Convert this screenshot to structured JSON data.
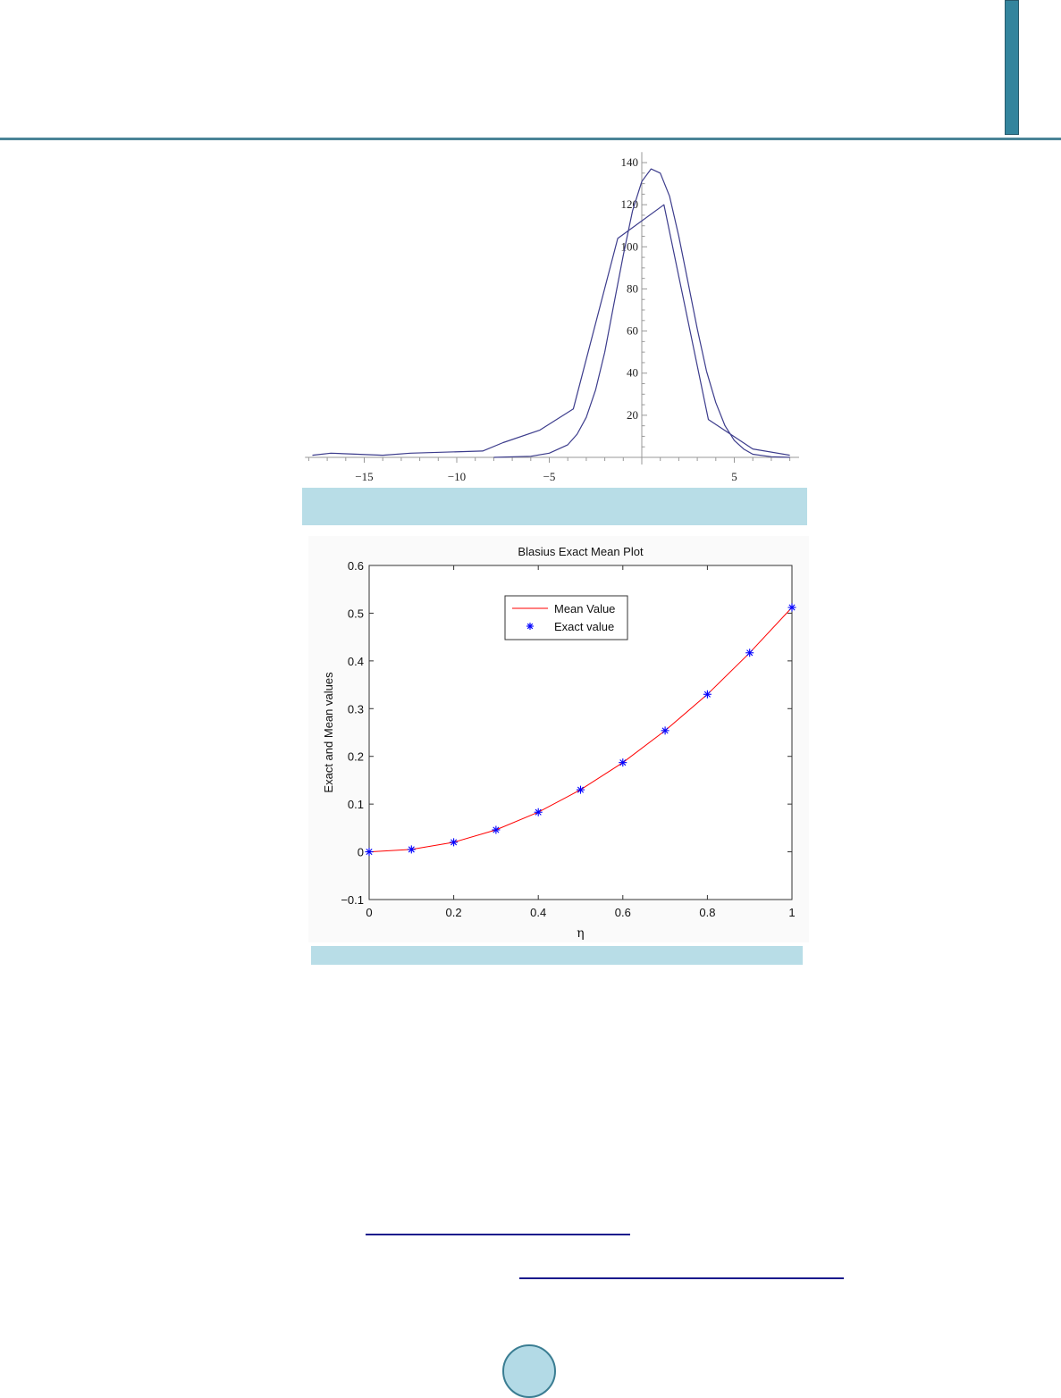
{
  "header": {
    "rule_color": "#4a8497",
    "tab_color": "#33849d"
  },
  "figures": [
    {
      "id": "figure-1",
      "caption": "",
      "caption_bar_color": "#b8dde7"
    },
    {
      "id": "figure-2",
      "caption": "",
      "caption_bar_color": "#b8dde7"
    }
  ],
  "footer": {
    "links": [
      "",
      ""
    ],
    "page_number": ""
  },
  "chart_data": [
    {
      "type": "line",
      "title": "",
      "xlabel": "",
      "ylabel": "",
      "xlim": [
        -18,
        8
      ],
      "ylim": [
        0,
        145
      ],
      "x_ticks": [
        -15,
        -10,
        -5,
        5
      ],
      "x_tick_labels": [
        "−15",
        "−10",
        "−5",
        "5"
      ],
      "y_ticks": [
        20,
        40,
        60,
        80,
        100,
        120,
        140
      ],
      "y_tick_labels": [
        "20",
        "40",
        "60",
        "80",
        "100",
        "120",
        "140"
      ],
      "grid": false,
      "legend": null,
      "line_color": "#3c3c8c",
      "series": [
        {
          "name": "smooth-curve",
          "x": [
            -8,
            -6,
            -5,
            -4,
            -3.5,
            -3,
            -2.5,
            -2,
            -1.5,
            -1,
            -0.5,
            0,
            0.5,
            1,
            1.5,
            2,
            2.5,
            3,
            3.5,
            4,
            4.5,
            5,
            5.5,
            6,
            7,
            8
          ],
          "y": [
            0,
            0.5,
            2,
            6,
            11,
            19,
            32,
            50,
            73,
            96,
            117,
            131,
            137,
            135,
            124,
            105,
            83,
            61,
            41,
            26,
            15,
            8,
            4,
            1.5,
            0.3,
            0
          ]
        },
        {
          "name": "polygon-approximation",
          "x": [
            -17.8,
            -16.8,
            -14,
            -12.5,
            -8.6,
            -7.5,
            -5.5,
            -3.7,
            -1.3,
            1.2,
            3.6,
            6,
            8
          ],
          "y": [
            1,
            2,
            1,
            2,
            3,
            7,
            13,
            23,
            104,
            120,
            18,
            4,
            1
          ]
        }
      ]
    },
    {
      "type": "line",
      "title": "Blasius Exact Mean Plot",
      "xlabel": "η",
      "ylabel": "Exact and Mean values",
      "xlim": [
        0,
        1
      ],
      "ylim": [
        -0.1,
        0.6
      ],
      "x_ticks": [
        0,
        0.2,
        0.4,
        0.6,
        0.8,
        1
      ],
      "x_tick_labels": [
        "0",
        "0.2",
        "0.4",
        "0.6",
        "0.8",
        "1"
      ],
      "y_ticks": [
        -0.1,
        0,
        0.1,
        0.2,
        0.3,
        0.4,
        0.5,
        0.6
      ],
      "y_tick_labels": [
        "−0.1",
        "0",
        "0.1",
        "0.2",
        "0.3",
        "0.4",
        "0.5",
        "0.6"
      ],
      "grid": false,
      "legend": {
        "position": "upper center",
        "entries": [
          "Mean Value",
          "Exact value"
        ]
      },
      "series": [
        {
          "name": "Mean Value",
          "style": "line",
          "color": "#ff0000",
          "x": [
            0,
            0.1,
            0.2,
            0.3,
            0.4,
            0.5,
            0.6,
            0.7,
            0.8,
            0.9,
            1.0
          ],
          "y": [
            0,
            0.005,
            0.02,
            0.046,
            0.083,
            0.13,
            0.187,
            0.254,
            0.33,
            0.417,
            0.512
          ]
        },
        {
          "name": "Exact value",
          "style": "marker-asterisk",
          "color": "#0000ff",
          "x": [
            0,
            0.1,
            0.2,
            0.3,
            0.4,
            0.5,
            0.6,
            0.7,
            0.8,
            0.9,
            1.0
          ],
          "y": [
            0,
            0.005,
            0.02,
            0.046,
            0.083,
            0.13,
            0.187,
            0.254,
            0.33,
            0.417,
            0.512
          ]
        }
      ]
    }
  ]
}
